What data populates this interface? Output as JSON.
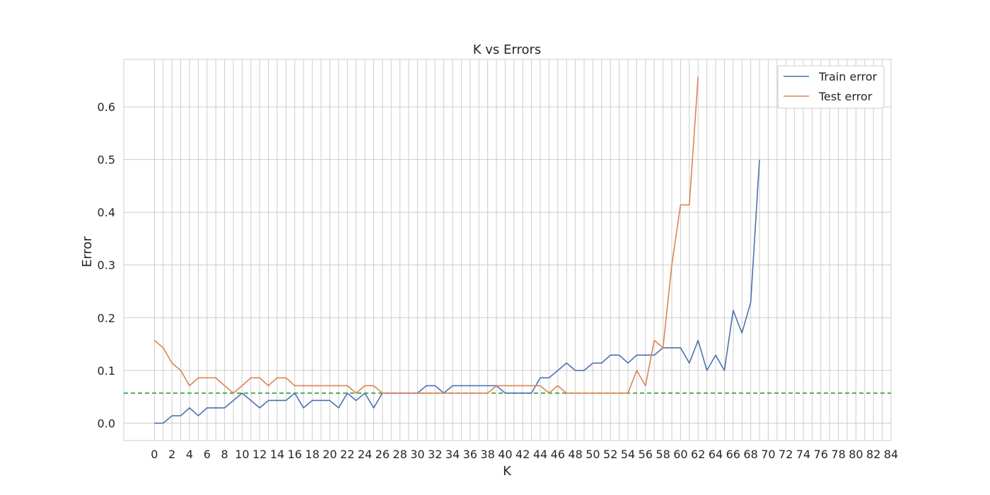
{
  "chart_data": {
    "type": "line",
    "title": "K vs Errors",
    "xlabel": "K",
    "ylabel": "Error",
    "xlim": [
      -3.5,
      84
    ],
    "ylim": [
      -0.033,
      0.69
    ],
    "xticks": [
      0,
      2,
      4,
      6,
      8,
      10,
      12,
      14,
      16,
      18,
      20,
      22,
      24,
      26,
      28,
      30,
      32,
      34,
      36,
      38,
      40,
      42,
      44,
      46,
      48,
      50,
      52,
      54,
      56,
      58,
      60,
      62,
      64,
      66,
      68,
      70,
      72,
      74,
      76,
      78,
      80,
      82,
      84
    ],
    "xgrid": [
      0,
      1,
      2,
      3,
      4,
      5,
      6,
      7,
      8,
      9,
      10,
      11,
      12,
      13,
      14,
      15,
      16,
      17,
      18,
      19,
      20,
      21,
      22,
      23,
      24,
      25,
      26,
      27,
      28,
      29,
      30,
      31,
      32,
      33,
      34,
      35,
      36,
      37,
      38,
      39,
      40,
      41,
      42,
      43,
      44,
      45,
      46,
      47,
      48,
      49,
      50,
      51,
      52,
      53,
      54,
      55,
      56,
      57,
      58,
      59,
      60,
      61,
      62,
      63,
      64,
      65,
      66,
      67,
      68,
      69,
      70,
      71,
      72,
      73,
      74,
      75,
      76,
      77,
      78,
      79,
      80,
      81,
      82,
      83,
      84
    ],
    "yticks": [
      "0.0",
      "0.1",
      "0.2",
      "0.3",
      "0.4",
      "0.5",
      "0.6"
    ],
    "grid": true,
    "legend_position": "top-right",
    "series": [
      {
        "name": "Train error",
        "color": "#4c72b0",
        "x": [
          0,
          1,
          2,
          3,
          4,
          5,
          6,
          7,
          8,
          9,
          10,
          11,
          12,
          13,
          14,
          15,
          16,
          17,
          18,
          19,
          20,
          21,
          22,
          23,
          24,
          25,
          26,
          27,
          28,
          29,
          30,
          31,
          32,
          33,
          34,
          35,
          36,
          37,
          38,
          39,
          40,
          41,
          42,
          43,
          44,
          45,
          46,
          47,
          48,
          49,
          50,
          51,
          52,
          53,
          54,
          55,
          56,
          57,
          58,
          59,
          60,
          61,
          62,
          63,
          64,
          65,
          66,
          67,
          68,
          69
        ],
        "values": [
          0.0,
          0.0,
          0.014,
          0.014,
          0.029,
          0.014,
          0.029,
          0.029,
          0.029,
          0.043,
          0.057,
          0.043,
          0.029,
          0.043,
          0.043,
          0.043,
          0.057,
          0.029,
          0.043,
          0.043,
          0.043,
          0.029,
          0.057,
          0.043,
          0.057,
          0.029,
          0.057,
          0.057,
          0.057,
          0.057,
          0.057,
          0.071,
          0.071,
          0.057,
          0.071,
          0.071,
          0.071,
          0.071,
          0.071,
          0.071,
          0.057,
          0.057,
          0.057,
          0.057,
          0.086,
          0.086,
          0.1,
          0.114,
          0.1,
          0.1,
          0.114,
          0.114,
          0.129,
          0.129,
          0.114,
          0.129,
          0.129,
          0.129,
          0.143,
          0.143,
          0.143,
          0.114,
          0.157,
          0.1,
          0.129,
          0.1,
          0.214,
          0.171,
          0.229,
          0.5
        ]
      },
      {
        "name": "Test error",
        "color": "#dd8452",
        "x": [
          0,
          1,
          2,
          3,
          4,
          5,
          6,
          7,
          8,
          9,
          10,
          11,
          12,
          13,
          14,
          15,
          16,
          17,
          18,
          19,
          20,
          21,
          22,
          23,
          24,
          25,
          26,
          27,
          28,
          29,
          30,
          31,
          32,
          33,
          34,
          35,
          36,
          37,
          38,
          39,
          40,
          41,
          42,
          43,
          44,
          45,
          46,
          47,
          48,
          49,
          50,
          51,
          52,
          53,
          54,
          55,
          56,
          57,
          58,
          59,
          60,
          61,
          62
        ],
        "values": [
          0.157,
          0.143,
          0.114,
          0.1,
          0.071,
          0.086,
          0.086,
          0.086,
          0.071,
          0.057,
          0.071,
          0.086,
          0.086,
          0.071,
          0.086,
          0.086,
          0.071,
          0.071,
          0.071,
          0.071,
          0.071,
          0.071,
          0.071,
          0.057,
          0.071,
          0.071,
          0.057,
          0.057,
          0.057,
          0.057,
          0.057,
          0.057,
          0.057,
          0.057,
          0.057,
          0.057,
          0.057,
          0.057,
          0.057,
          0.071,
          0.071,
          0.071,
          0.071,
          0.071,
          0.071,
          0.057,
          0.071,
          0.057,
          0.057,
          0.057,
          0.057,
          0.057,
          0.057,
          0.057,
          0.057,
          0.1,
          0.071,
          0.157,
          0.143,
          0.3,
          0.414,
          0.414,
          0.657
        ]
      }
    ],
    "reference_line": {
      "y": 0.057,
      "color": "#2ca02c",
      "style": "dashed"
    }
  }
}
